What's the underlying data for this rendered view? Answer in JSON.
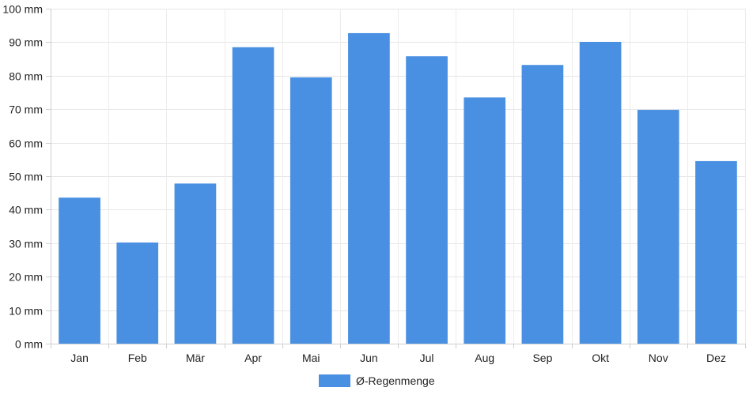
{
  "chart_data": {
    "type": "bar",
    "categories": [
      "Jan",
      "Feb",
      "Mär",
      "Apr",
      "Mai",
      "Jun",
      "Jul",
      "Aug",
      "Sep",
      "Okt",
      "Nov",
      "Dez"
    ],
    "series": [
      {
        "name": "Ø-Regenmenge",
        "color": "#4a90e2",
        "values": [
          43.6,
          30.2,
          47.8,
          88.5,
          79.5,
          92.7,
          85.8,
          73.5,
          83.2,
          90.1,
          69.8,
          54.5
        ]
      }
    ],
    "unit": "mm",
    "ylim": [
      0,
      100
    ],
    "yticks": [
      0,
      10,
      20,
      30,
      40,
      50,
      60,
      70,
      80,
      90,
      100
    ],
    "ytick_labels": [
      "0 mm",
      "10 mm",
      "20 mm",
      "30 mm",
      "40 mm",
      "50 mm",
      "60 mm",
      "70 mm",
      "80 mm",
      "90 mm",
      "100 mm"
    ],
    "grid": true,
    "legend_position": "bottom"
  }
}
